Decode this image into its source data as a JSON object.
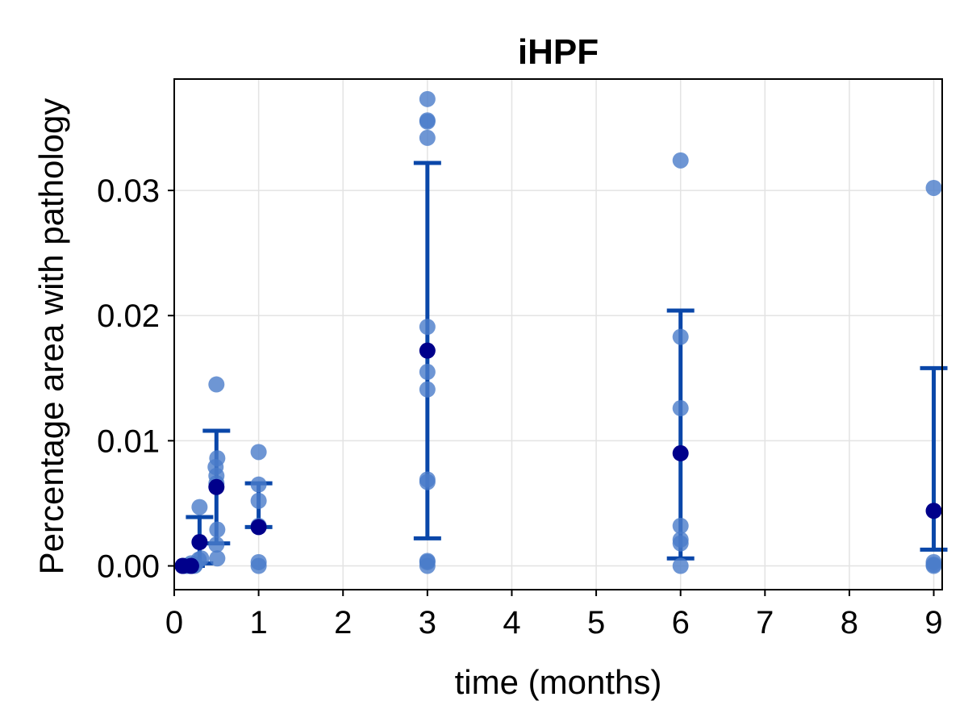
{
  "chart_data": {
    "type": "scatter",
    "title": "iHPF",
    "xlabel": "time (months)",
    "ylabel": "Percentage area with pathology",
    "xlim": [
      0,
      9.1
    ],
    "ylim": [
      -0.0019,
      0.0389
    ],
    "x_ticks": [
      0,
      1,
      2,
      3,
      4,
      5,
      6,
      7,
      8,
      9
    ],
    "y_ticks": [
      0.0,
      0.01,
      0.02,
      0.03
    ],
    "y_tick_labels": [
      "0.00",
      "0.01",
      "0.02",
      "0.03"
    ],
    "grid": true,
    "colors": {
      "points": "#4a7cc9",
      "mean": "#00008b",
      "errorbar": "#0a47a9",
      "grid": "#e3e3e3"
    },
    "points": [
      {
        "x": 0.1,
        "y": 0.0
      },
      {
        "x": 0.13,
        "y": 0.0
      },
      {
        "x": 0.16,
        "y": 0.0
      },
      {
        "x": 0.2,
        "y": 0.0
      },
      {
        "x": 0.2,
        "y": 0.0002
      },
      {
        "x": 0.24,
        "y": 0.0
      },
      {
        "x": 0.25,
        "y": 0.0001
      },
      {
        "x": 0.29,
        "y": 0.0005
      },
      {
        "x": 0.3,
        "y": 0.0047
      },
      {
        "x": 0.3,
        "y": 0.0019
      },
      {
        "x": 0.32,
        "y": 0.0006
      },
      {
        "x": 0.5,
        "y": 0.0145
      },
      {
        "x": 0.51,
        "y": 0.0086
      },
      {
        "x": 0.49,
        "y": 0.0079
      },
      {
        "x": 0.5,
        "y": 0.0072
      },
      {
        "x": 0.5,
        "y": 0.0066
      },
      {
        "x": 0.51,
        "y": 0.0029
      },
      {
        "x": 0.5,
        "y": 0.0017
      },
      {
        "x": 0.51,
        "y": 0.0006
      },
      {
        "x": 1.0,
        "y": 0.0091
      },
      {
        "x": 1.0,
        "y": 0.0065
      },
      {
        "x": 1.0,
        "y": 0.0052
      },
      {
        "x": 1.0,
        "y": 0.0032
      },
      {
        "x": 1.0,
        "y": 0.0003
      },
      {
        "x": 1.0,
        "y": 0.0
      },
      {
        "x": 3.0,
        "y": 0.0373
      },
      {
        "x": 3.0,
        "y": 0.0356
      },
      {
        "x": 3.0,
        "y": 0.0355
      },
      {
        "x": 3.0,
        "y": 0.0342
      },
      {
        "x": 3.0,
        "y": 0.0191
      },
      {
        "x": 3.0,
        "y": 0.0155
      },
      {
        "x": 3.0,
        "y": 0.0141
      },
      {
        "x": 3.0,
        "y": 0.0069
      },
      {
        "x": 3.0,
        "y": 0.0067
      },
      {
        "x": 3.0,
        "y": 0.0004
      },
      {
        "x": 3.0,
        "y": 0.0003
      },
      {
        "x": 3.0,
        "y": 0.0
      },
      {
        "x": 6.0,
        "y": 0.0324
      },
      {
        "x": 6.0,
        "y": 0.0183
      },
      {
        "x": 6.0,
        "y": 0.0126
      },
      {
        "x": 6.0,
        "y": 0.0032
      },
      {
        "x": 6.0,
        "y": 0.0021
      },
      {
        "x": 6.0,
        "y": 0.0018
      },
      {
        "x": 6.0,
        "y": 0.0
      },
      {
        "x": 9.0,
        "y": 0.0302
      },
      {
        "x": 9.0,
        "y": 0.0003
      },
      {
        "x": 9.0,
        "y": 0.0001
      },
      {
        "x": 9.0,
        "y": 0.0
      }
    ],
    "series": [
      {
        "x": 0.1,
        "mean": 0.0,
        "lower": 0.0,
        "upper": 0.0
      },
      {
        "x": 0.2,
        "mean": 0.0,
        "lower": 0.0,
        "upper": 0.0002
      },
      {
        "x": 0.3,
        "mean": 0.0019,
        "lower": 0.0002,
        "upper": 0.0039
      },
      {
        "x": 0.5,
        "mean": 0.0063,
        "lower": 0.0018,
        "upper": 0.0108
      },
      {
        "x": 1.0,
        "mean": 0.0031,
        "lower": 0.0031,
        "upper": 0.0066
      },
      {
        "x": 3.0,
        "mean": 0.0172,
        "lower": 0.0022,
        "upper": 0.0322
      },
      {
        "x": 6.0,
        "mean": 0.009,
        "lower": 0.0006,
        "upper": 0.0204
      },
      {
        "x": 9.0,
        "mean": 0.0044,
        "lower": 0.0013,
        "upper": 0.0158
      }
    ]
  }
}
